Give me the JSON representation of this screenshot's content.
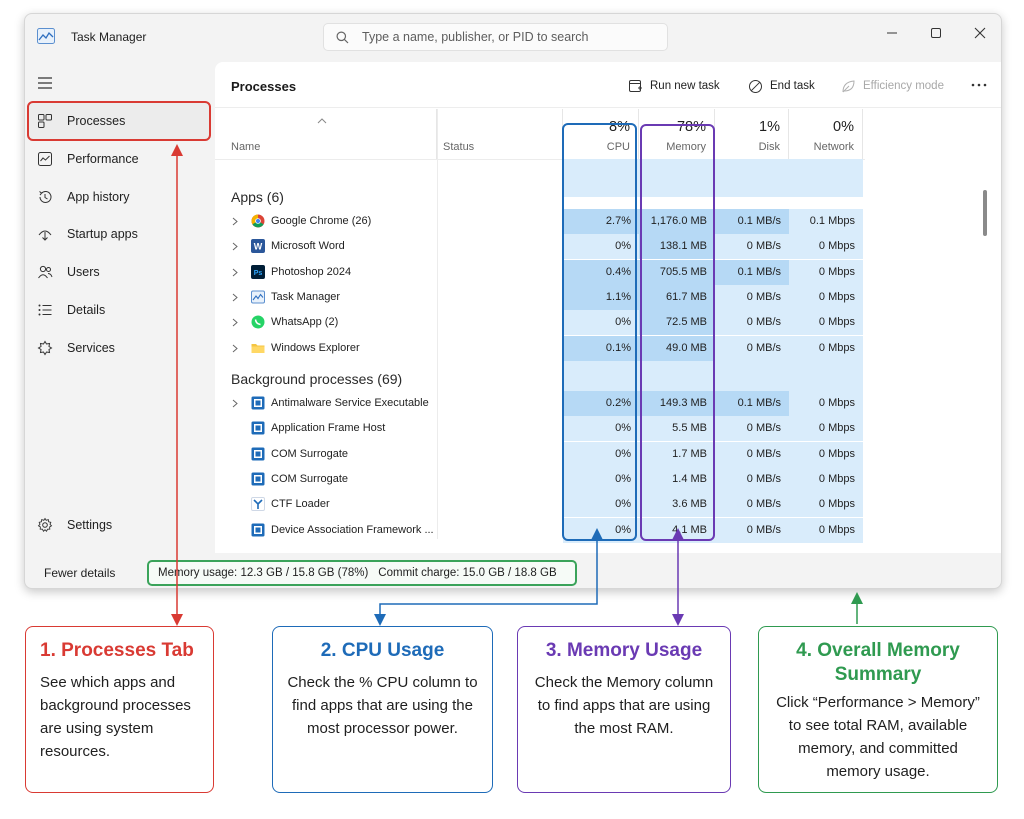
{
  "window": {
    "title": "Task Manager"
  },
  "search": {
    "placeholder": "Type a name, publisher, or PID to search"
  },
  "sidebar": {
    "items": [
      {
        "label": "Processes",
        "icon": "processes-icon"
      },
      {
        "label": "Performance",
        "icon": "performance-icon"
      },
      {
        "label": "App history",
        "icon": "history-icon"
      },
      {
        "label": "Startup apps",
        "icon": "startup-icon"
      },
      {
        "label": "Users",
        "icon": "users-icon"
      },
      {
        "label": "Details",
        "icon": "details-icon"
      },
      {
        "label": "Services",
        "icon": "services-icon"
      }
    ],
    "settings_label": "Settings",
    "active": "Processes"
  },
  "header": {
    "title": "Processes",
    "run_new_task": "Run new task",
    "end_task": "End task",
    "efficiency_mode": "Efficiency mode"
  },
  "columns": {
    "name": "Name",
    "status": "Status",
    "cpu": {
      "label": "CPU",
      "pct": "8%"
    },
    "memory": {
      "label": "Memory",
      "pct": "78%"
    },
    "disk": {
      "label": "Disk",
      "pct": "1%"
    },
    "network": {
      "label": "Network",
      "pct": "0%"
    }
  },
  "groups": {
    "apps": {
      "title": "Apps (6)",
      "rows": [
        {
          "name": "Google Chrome (26)",
          "icon": "chrome-icon",
          "cpu": "2.7%",
          "memory": "1,176.0 MB",
          "disk": "0.1 MB/s",
          "network": "0.1 Mbps"
        },
        {
          "name": "Microsoft Word",
          "icon": "word-icon",
          "cpu": "0%",
          "memory": "138.1 MB",
          "disk": "0 MB/s",
          "network": "0 Mbps"
        },
        {
          "name": "Photoshop 2024",
          "icon": "photoshop-icon",
          "cpu": "0.4%",
          "memory": "705.5 MB",
          "disk": "0.1 MB/s",
          "network": "0 Mbps"
        },
        {
          "name": "Task Manager",
          "icon": "task-manager-icon",
          "cpu": "1.1%",
          "memory": "61.7 MB",
          "disk": "0 MB/s",
          "network": "0 Mbps"
        },
        {
          "name": "WhatsApp (2)",
          "icon": "whatsapp-icon",
          "cpu": "0%",
          "memory": "72.5 MB",
          "disk": "0 MB/s",
          "network": "0 Mbps"
        },
        {
          "name": "Windows Explorer",
          "icon": "folder-icon",
          "cpu": "0.1%",
          "memory": "49.0 MB",
          "disk": "0 MB/s",
          "network": "0 Mbps"
        }
      ]
    },
    "background": {
      "title": "Background processes (69)",
      "rows": [
        {
          "name": "Antimalware Service Executable",
          "icon": "process-icon",
          "cpu": "0.2%",
          "memory": "149.3 MB",
          "disk": "0.1 MB/s",
          "network": "0 Mbps"
        },
        {
          "name": "Application Frame Host",
          "icon": "process-icon",
          "cpu": "0%",
          "memory": "5.5 MB",
          "disk": "0 MB/s",
          "network": "0 Mbps"
        },
        {
          "name": "COM Surrogate",
          "icon": "process-icon",
          "cpu": "0%",
          "memory": "1.7 MB",
          "disk": "0 MB/s",
          "network": "0 Mbps"
        },
        {
          "name": "COM Surrogate",
          "icon": "process-icon",
          "cpu": "0%",
          "memory": "1.4 MB",
          "disk": "0 MB/s",
          "network": "0 Mbps"
        },
        {
          "name": "CTF Loader",
          "icon": "ctf-loader-icon",
          "cpu": "0%",
          "memory": "3.6 MB",
          "disk": "0 MB/s",
          "network": "0 Mbps"
        },
        {
          "name": "Device Association Framework ...",
          "icon": "process-icon",
          "cpu": "0%",
          "memory": "4.1 MB",
          "disk": "0 MB/s",
          "network": "0 Mbps"
        }
      ]
    }
  },
  "footer": {
    "fewer_details": "Fewer details",
    "memory_usage": "Memory usage: 12.3 GB / 15.8 GB (78%)",
    "commit_charge": "Commit charge: 15.0 GB / 18.8 GB"
  },
  "callouts": [
    {
      "title": "1. Processes Tab",
      "body": "See which apps and background processes are using system resources.",
      "color": "#d93a33"
    },
    {
      "title": "2. CPU Usage",
      "body": "Check the % CPU column to find apps that are using the most processor power.",
      "color": "#1e6bb8"
    },
    {
      "title": "3. Memory Usage",
      "body": "Check the Memory column to find apps that are using the most RAM.",
      "color": "#6a3ab3"
    },
    {
      "title": "4. Overall Memory Summary",
      "body": "Click “Performance > Memory” to see total RAM, available memory, and committed memory usage.",
      "color": "#2f9a50"
    }
  ],
  "colors": {
    "cell_heavy": "#b6d9f5",
    "cell_light": "#d9ecfb",
    "cpu_outline": "#1e6bb8",
    "memory_outline": "#6a3ab3"
  }
}
